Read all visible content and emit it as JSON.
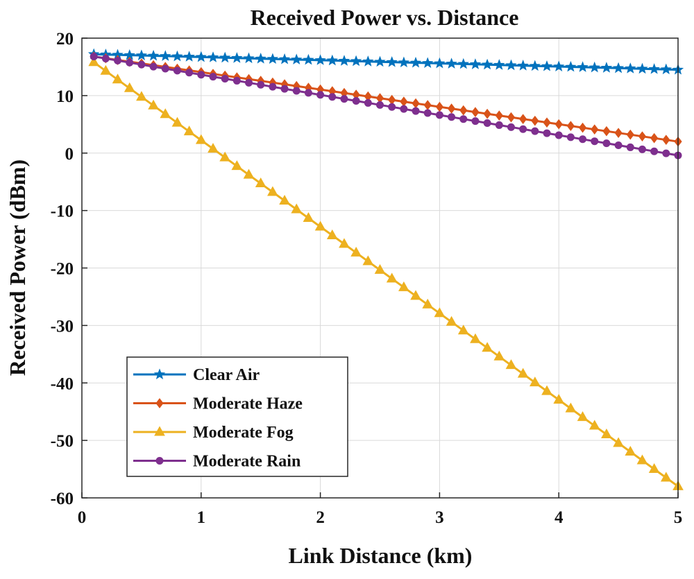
{
  "chart_data": {
    "type": "line",
    "title": "Received Power vs. Distance",
    "xlabel": "Link Distance (km)",
    "ylabel": "Received Power (dBm)",
    "xlim": [
      0,
      5
    ],
    "ylim": [
      -60,
      20
    ],
    "xticks": [
      "0",
      "1",
      "2",
      "3",
      "4",
      "5"
    ],
    "yticks": [
      "20",
      "10",
      "0",
      "-10",
      "-20",
      "-30",
      "-40",
      "-50",
      "-60"
    ],
    "grid": true,
    "legend_position": "bottom-left",
    "x": {
      "start": 0.1,
      "end": 5.0,
      "step": 0.1
    },
    "series": [
      {
        "name": "Clear Air",
        "color": "#0072BD",
        "marker": "star",
        "y_start": 17.2,
        "y_end": 14.5
      },
      {
        "name": "Moderate Haze",
        "color": "#D95319",
        "marker": "diamond",
        "y_start": 16.8,
        "y_end": 2.0
      },
      {
        "name": "Moderate Fog",
        "color": "#EDB120",
        "marker": "triangle",
        "y_start": 15.8,
        "y_end": -58.0
      },
      {
        "name": "Moderate Rain",
        "color": "#7E2F8E",
        "marker": "circle",
        "y_start": 16.8,
        "y_end": -0.4
      }
    ]
  }
}
